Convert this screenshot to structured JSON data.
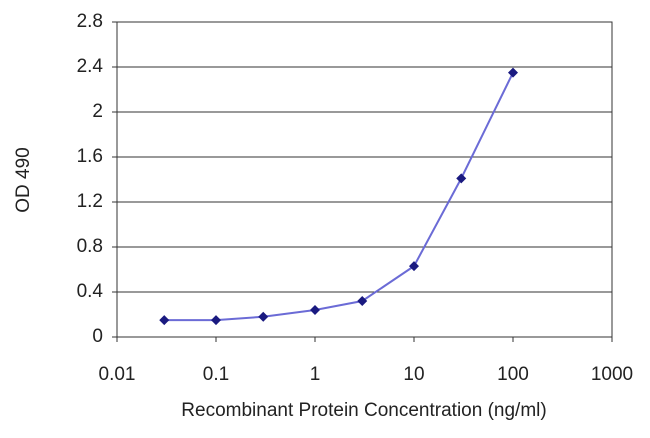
{
  "chart_data": {
    "type": "line",
    "x_label": "Recombinant Protein Concentration (ng/ml)",
    "y_label": "OD 490",
    "x": [
      0.03,
      0.1,
      0.3,
      1,
      3,
      10,
      30,
      100
    ],
    "series": [
      {
        "color": "#6b6bd6",
        "marker_color": "#1a1a80",
        "values": [
          0.15,
          0.15,
          0.18,
          0.24,
          0.32,
          0.63,
          1.41,
          2.35
        ]
      }
    ],
    "x_log": true,
    "xlim": [
      0.01,
      1000
    ],
    "xticks": [
      0.01,
      0.1,
      1,
      10,
      100,
      1000
    ],
    "ylim": [
      0,
      2.8
    ],
    "yticks": [
      0,
      0.4,
      0.8,
      1.2,
      1.6,
      2,
      2.4,
      2.8
    ],
    "grid": true
  }
}
